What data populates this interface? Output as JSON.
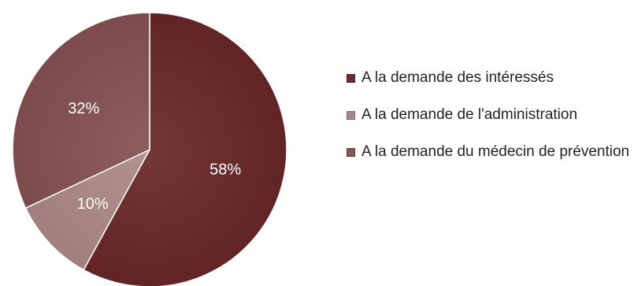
{
  "chart_data": {
    "type": "pie",
    "title": "",
    "start_angle_deg": 0,
    "direction": "clockwise",
    "legend_position": "right",
    "slices": [
      {
        "label": "A la demande des intéressés",
        "value": 58,
        "display": "58%",
        "color": "#6a2c2c"
      },
      {
        "label": "A la demande de l'administration",
        "value": 10,
        "display": "10%",
        "color": "#a98784"
      },
      {
        "label": "A la demande du médecin de prévention",
        "value": 32,
        "display": "32%",
        "color": "#845353"
      }
    ]
  }
}
